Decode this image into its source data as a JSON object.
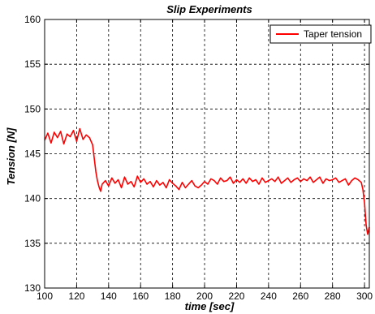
{
  "chart_data": {
    "type": "line",
    "title": "Slip Experiments",
    "xlabel": "time [sec]",
    "ylabel": "Tension [N]",
    "xlim": [
      100,
      303
    ],
    "ylim": [
      130,
      160
    ],
    "xticks": [
      100,
      120,
      140,
      160,
      180,
      200,
      220,
      240,
      260,
      280,
      300
    ],
    "yticks": [
      130,
      135,
      140,
      145,
      150,
      155,
      160
    ],
    "grid": true,
    "legend_position": "top-right",
    "series": [
      {
        "name": "Taper tension",
        "color": "#ff0000",
        "x": [
          100,
          102,
          104,
          106,
          108,
          110,
          112,
          114,
          116,
          118,
          120,
          122,
          124,
          126,
          128,
          130,
          131,
          132,
          133,
          134,
          135,
          136,
          138,
          140,
          142,
          144,
          146,
          148,
          150,
          152,
          154,
          156,
          158,
          160,
          162,
          164,
          166,
          168,
          170,
          172,
          174,
          176,
          178,
          180,
          182,
          184,
          186,
          188,
          190,
          192,
          194,
          196,
          198,
          200,
          202,
          204,
          206,
          208,
          210,
          212,
          214,
          216,
          218,
          220,
          222,
          224,
          226,
          228,
          230,
          232,
          234,
          236,
          238,
          240,
          242,
          244,
          246,
          248,
          250,
          252,
          254,
          256,
          258,
          260,
          262,
          264,
          266,
          268,
          270,
          272,
          274,
          276,
          278,
          280,
          282,
          284,
          286,
          288,
          290,
          292,
          294,
          296,
          298,
          299,
          300,
          301,
          302,
          303
        ],
        "y": [
          146.5,
          147.3,
          146.2,
          147.4,
          146.8,
          147.5,
          146.1,
          147.2,
          146.9,
          147.6,
          146.4,
          147.8,
          146.6,
          147.1,
          146.8,
          146.0,
          144.5,
          143.0,
          142.0,
          141.3,
          140.8,
          141.6,
          142.0,
          141.4,
          142.3,
          141.7,
          142.1,
          141.2,
          142.4,
          141.6,
          141.9,
          141.3,
          142.5,
          141.8,
          142.2,
          141.6,
          141.9,
          141.3,
          142.0,
          141.5,
          141.8,
          141.2,
          142.1,
          141.7,
          141.4,
          141.0,
          141.8,
          141.2,
          141.6,
          142.0,
          141.4,
          141.2,
          141.5,
          141.9,
          141.6,
          142.2,
          142.0,
          141.6,
          142.3,
          141.9,
          142.0,
          142.4,
          141.7,
          142.1,
          141.8,
          142.2,
          141.7,
          142.3,
          141.9,
          142.1,
          141.6,
          142.3,
          141.8,
          142.0,
          142.2,
          141.9,
          142.4,
          141.7,
          142.0,
          142.3,
          141.8,
          142.1,
          142.3,
          141.9,
          142.2,
          142.0,
          142.4,
          141.8,
          142.1,
          142.4,
          141.7,
          142.2,
          142.0,
          142.1,
          142.3,
          141.8,
          142.0,
          142.2,
          141.5,
          142.0,
          142.3,
          142.1,
          141.8,
          141.0,
          139.5,
          137.0,
          136.0,
          136.8
        ]
      }
    ]
  }
}
